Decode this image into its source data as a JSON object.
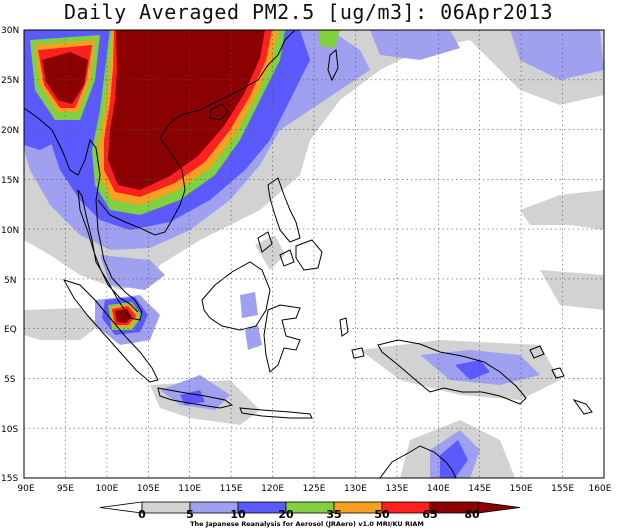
{
  "title": "Daily Averaged PM2.5 [ug/m3]: 06Apr2013",
  "lat_labels": [
    "30N",
    "25N",
    "20N",
    "15N",
    "10N",
    "5N",
    "EQ",
    "5S",
    "10S",
    "15S"
  ],
  "lon_labels": [
    "90E",
    "95E",
    "100E",
    "105E",
    "110E",
    "115E",
    "120E",
    "125E",
    "130E",
    "135E",
    "140E",
    "145E",
    "150E",
    "155E",
    "160E"
  ],
  "colorbar": {
    "levels": [
      "0",
      "5",
      "10",
      "20",
      "35",
      "50",
      "65",
      "80"
    ],
    "colors": [
      "#ffffff",
      "#d2d2d2",
      "#a0a0f0",
      "#5a5aff",
      "#80d040",
      "#f5a020",
      "#ff2020",
      "#8b0000"
    ]
  },
  "credit": "The Japanese Reanalysis for Aerosol (JRAero) v1.0 MRI/KU RIAM"
}
